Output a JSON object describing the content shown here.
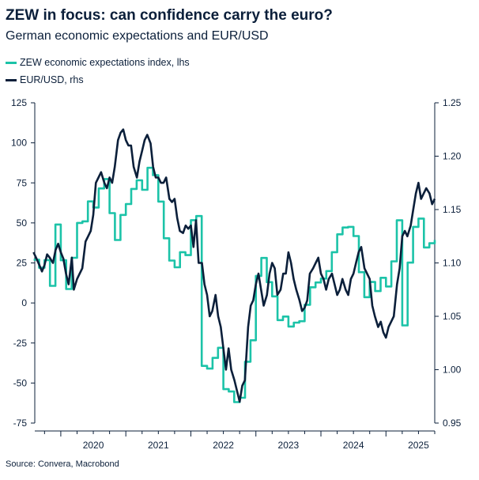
{
  "header": {
    "title": "ZEW in focus: can confidence carry the euro?",
    "subtitle": "German economic expectations and EUR/USD"
  },
  "legend": [
    {
      "label": "ZEW economic expectations index, lhs",
      "color": "#1cc3a8"
    },
    {
      "label": "EUR/USD, rhs",
      "color": "#0b1f3a"
    }
  ],
  "footer": {
    "source": "Source: Convera, Macrobond"
  },
  "chart_data": {
    "type": "line",
    "x_axis": {
      "range": [
        2019.6,
        2025.75
      ],
      "tick_labels": [
        "2020",
        "2021",
        "2022",
        "2023",
        "2024",
        "2025"
      ]
    },
    "y_left": {
      "range": [
        -75,
        125
      ],
      "ticks": [
        125,
        100,
        75,
        50,
        25,
        0,
        -25,
        -50,
        -75
      ]
    },
    "y_right": {
      "range": [
        0.95,
        1.25
      ],
      "ticks": [
        "1.25",
        "1.20",
        "1.15",
        "1.10",
        "1.05",
        "1.00",
        "0.95"
      ]
    },
    "grid": false,
    "legend_position": "top-left",
    "series": [
      {
        "name": "ZEW economic expectations index, lhs",
        "axis": "left",
        "color": "#1cc3a8",
        "step": true,
        "points": [
          [
            2019.583,
            27
          ],
          [
            2019.667,
            22
          ],
          [
            2019.75,
            26.8
          ],
          [
            2019.833,
            10.7
          ],
          [
            2019.917,
            49
          ],
          [
            2020.0,
            26.7
          ],
          [
            2020.083,
            8.7
          ],
          [
            2020.167,
            28.2
          ],
          [
            2020.25,
            50
          ],
          [
            2020.333,
            51
          ],
          [
            2020.417,
            63.4
          ],
          [
            2020.5,
            59.6
          ],
          [
            2020.583,
            71.5
          ],
          [
            2020.667,
            77.4
          ],
          [
            2020.75,
            56.1
          ],
          [
            2020.833,
            39.3
          ],
          [
            2020.917,
            55
          ],
          [
            2021.0,
            61.8
          ],
          [
            2021.083,
            71.2
          ],
          [
            2021.167,
            76.6
          ],
          [
            2021.25,
            70.7
          ],
          [
            2021.333,
            84.4
          ],
          [
            2021.417,
            79.8
          ],
          [
            2021.5,
            63.3
          ],
          [
            2021.583,
            40.4
          ],
          [
            2021.667,
            26.5
          ],
          [
            2021.75,
            22.3
          ],
          [
            2021.833,
            31.7
          ],
          [
            2021.917,
            29.9
          ],
          [
            2022.0,
            51.7
          ],
          [
            2022.083,
            54.3
          ],
          [
            2022.167,
            -39.3
          ],
          [
            2022.25,
            -41
          ],
          [
            2022.333,
            -34.3
          ],
          [
            2022.417,
            -28
          ],
          [
            2022.5,
            -53.8
          ],
          [
            2022.583,
            -55.3
          ],
          [
            2022.667,
            -61.9
          ],
          [
            2022.75,
            -59.2
          ],
          [
            2022.833,
            -36.7
          ],
          [
            2022.917,
            -23.3
          ],
          [
            2023.0,
            16.9
          ],
          [
            2023.083,
            28.1
          ],
          [
            2023.167,
            13
          ],
          [
            2023.25,
            4.1
          ],
          [
            2023.333,
            -10.7
          ],
          [
            2023.417,
            -8.5
          ],
          [
            2023.5,
            -14.7
          ],
          [
            2023.583,
            -12.3
          ],
          [
            2023.667,
            -11.4
          ],
          [
            2023.75,
            -1.1
          ],
          [
            2023.833,
            9.8
          ],
          [
            2023.917,
            12.8
          ],
          [
            2024.0,
            15.2
          ],
          [
            2024.083,
            19.9
          ],
          [
            2024.167,
            31.7
          ],
          [
            2024.25,
            42.9
          ],
          [
            2024.333,
            47.1
          ],
          [
            2024.417,
            47.5
          ],
          [
            2024.5,
            41.8
          ],
          [
            2024.583,
            19.2
          ],
          [
            2024.667,
            3.6
          ],
          [
            2024.75,
            13.1
          ],
          [
            2024.833,
            7.4
          ],
          [
            2024.917,
            15.7
          ],
          [
            2025.0,
            10.3
          ],
          [
            2025.083,
            26
          ],
          [
            2025.167,
            51.6
          ],
          [
            2025.25,
            -14
          ],
          [
            2025.333,
            25.2
          ],
          [
            2025.417,
            47.5
          ],
          [
            2025.5,
            52.7
          ],
          [
            2025.583,
            34.7
          ],
          [
            2025.667,
            37.3
          ],
          [
            2025.75,
            39.3
          ]
        ]
      },
      {
        "name": "EUR/USD, rhs",
        "axis": "right",
        "color": "#0b1f3a",
        "step": false,
        "points": [
          [
            2019.58,
            1.11
          ],
          [
            2019.62,
            1.105
          ],
          [
            2019.67,
            1.098
          ],
          [
            2019.71,
            1.092
          ],
          [
            2019.75,
            1.098
          ],
          [
            2019.79,
            1.108
          ],
          [
            2019.83,
            1.105
          ],
          [
            2019.88,
            1.1
          ],
          [
            2019.92,
            1.112
          ],
          [
            2019.96,
            1.118
          ],
          [
            2020.0,
            1.11
          ],
          [
            2020.04,
            1.104
          ],
          [
            2020.08,
            1.09
          ],
          [
            2020.12,
            1.08
          ],
          [
            2020.17,
            1.105
          ],
          [
            2020.2,
            1.075
          ],
          [
            2020.25,
            1.085
          ],
          [
            2020.29,
            1.09
          ],
          [
            2020.33,
            1.095
          ],
          [
            2020.38,
            1.12
          ],
          [
            2020.42,
            1.125
          ],
          [
            2020.46,
            1.13
          ],
          [
            2020.5,
            1.145
          ],
          [
            2020.54,
            1.175
          ],
          [
            2020.58,
            1.18
          ],
          [
            2020.62,
            1.185
          ],
          [
            2020.67,
            1.175
          ],
          [
            2020.71,
            1.17
          ],
          [
            2020.75,
            1.18
          ],
          [
            2020.79,
            1.175
          ],
          [
            2020.83,
            1.19
          ],
          [
            2020.88,
            1.215
          ],
          [
            2020.92,
            1.222
          ],
          [
            2020.96,
            1.225
          ],
          [
            2021.0,
            1.215
          ],
          [
            2021.04,
            1.21
          ],
          [
            2021.08,
            1.21
          ],
          [
            2021.12,
            1.19
          ],
          [
            2021.17,
            1.18
          ],
          [
            2021.21,
            1.195
          ],
          [
            2021.25,
            1.205
          ],
          [
            2021.29,
            1.215
          ],
          [
            2021.33,
            1.22
          ],
          [
            2021.38,
            1.212
          ],
          [
            2021.42,
            1.19
          ],
          [
            2021.46,
            1.18
          ],
          [
            2021.5,
            1.18
          ],
          [
            2021.54,
            1.175
          ],
          [
            2021.58,
            1.175
          ],
          [
            2021.62,
            1.18
          ],
          [
            2021.67,
            1.16
          ],
          [
            2021.71,
            1.157
          ],
          [
            2021.75,
            1.16
          ],
          [
            2021.79,
            1.142
          ],
          [
            2021.83,
            1.13
          ],
          [
            2021.88,
            1.128
          ],
          [
            2021.92,
            1.135
          ],
          [
            2021.96,
            1.132
          ],
          [
            2022.0,
            1.135
          ],
          [
            2022.04,
            1.115
          ],
          [
            2022.08,
            1.14
          ],
          [
            2022.12,
            1.1
          ],
          [
            2022.17,
            1.1
          ],
          [
            2022.21,
            1.08
          ],
          [
            2022.25,
            1.07
          ],
          [
            2022.29,
            1.05
          ],
          [
            2022.33,
            1.055
          ],
          [
            2022.38,
            1.07
          ],
          [
            2022.42,
            1.05
          ],
          [
            2022.46,
            1.04
          ],
          [
            2022.5,
            1.02
          ],
          [
            2022.54,
            1.0
          ],
          [
            2022.58,
            1.02
          ],
          [
            2022.62,
            1.0
          ],
          [
            2022.67,
            0.99
          ],
          [
            2022.71,
            0.98
          ],
          [
            2022.75,
            0.97
          ],
          [
            2022.79,
            0.985
          ],
          [
            2022.83,
            0.99
          ],
          [
            2022.88,
            1.04
          ],
          [
            2022.92,
            1.06
          ],
          [
            2022.96,
            1.065
          ],
          [
            2023.0,
            1.08
          ],
          [
            2023.04,
            1.09
          ],
          [
            2023.08,
            1.075
          ],
          [
            2023.12,
            1.06
          ],
          [
            2023.17,
            1.07
          ],
          [
            2023.21,
            1.09
          ],
          [
            2023.25,
            1.1
          ],
          [
            2023.29,
            1.095
          ],
          [
            2023.33,
            1.07
          ],
          [
            2023.38,
            1.075
          ],
          [
            2023.42,
            1.09
          ],
          [
            2023.46,
            1.09
          ],
          [
            2023.5,
            1.11
          ],
          [
            2023.54,
            1.1
          ],
          [
            2023.58,
            1.085
          ],
          [
            2023.62,
            1.075
          ],
          [
            2023.67,
            1.065
          ],
          [
            2023.71,
            1.055
          ],
          [
            2023.75,
            1.058
          ],
          [
            2023.79,
            1.065
          ],
          [
            2023.83,
            1.09
          ],
          [
            2023.88,
            1.095
          ],
          [
            2023.92,
            1.1
          ],
          [
            2023.96,
            1.105
          ],
          [
            2024.0,
            1.09
          ],
          [
            2024.04,
            1.085
          ],
          [
            2024.08,
            1.075
          ],
          [
            2024.12,
            1.085
          ],
          [
            2024.17,
            1.09
          ],
          [
            2024.21,
            1.08
          ],
          [
            2024.25,
            1.07
          ],
          [
            2024.29,
            1.075
          ],
          [
            2024.33,
            1.085
          ],
          [
            2024.38,
            1.075
          ],
          [
            2024.42,
            1.07
          ],
          [
            2024.46,
            1.085
          ],
          [
            2024.5,
            1.09
          ],
          [
            2024.54,
            1.1
          ],
          [
            2024.58,
            1.11
          ],
          [
            2024.62,
            1.115
          ],
          [
            2024.67,
            1.095
          ],
          [
            2024.71,
            1.09
          ],
          [
            2024.75,
            1.085
          ],
          [
            2024.79,
            1.06
          ],
          [
            2024.83,
            1.05
          ],
          [
            2024.88,
            1.04
          ],
          [
            2024.92,
            1.045
          ],
          [
            2024.96,
            1.035
          ],
          [
            2025.0,
            1.03
          ],
          [
            2025.04,
            1.04
          ],
          [
            2025.08,
            1.045
          ],
          [
            2025.12,
            1.05
          ],
          [
            2025.17,
            1.08
          ],
          [
            2025.21,
            1.095
          ],
          [
            2025.25,
            1.125
          ],
          [
            2025.29,
            1.13
          ],
          [
            2025.33,
            1.125
          ],
          [
            2025.38,
            1.135
          ],
          [
            2025.42,
            1.15
          ],
          [
            2025.46,
            1.165
          ],
          [
            2025.5,
            1.175
          ],
          [
            2025.54,
            1.16
          ],
          [
            2025.58,
            1.165
          ],
          [
            2025.62,
            1.17
          ],
          [
            2025.67,
            1.165
          ],
          [
            2025.71,
            1.155
          ],
          [
            2025.75,
            1.16
          ]
        ]
      }
    ]
  }
}
